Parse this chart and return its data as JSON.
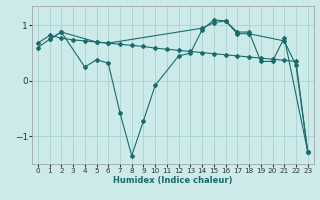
{
  "xlabel": "Humidex (Indice chaleur)",
  "bg_color": "#cdeaea",
  "grid_color": "#aed4d4",
  "line_color": "#1a6b6b",
  "xlim": [
    -0.5,
    23.5
  ],
  "ylim": [
    -1.5,
    1.35
  ],
  "yticks": [
    -1,
    0,
    1
  ],
  "xticks": [
    0,
    1,
    2,
    3,
    4,
    5,
    6,
    7,
    8,
    9,
    10,
    11,
    12,
    13,
    14,
    15,
    16,
    17,
    18,
    19,
    20,
    21,
    22,
    23
  ],
  "series": [
    {
      "x": [
        0,
        1,
        2,
        3,
        4,
        5,
        6,
        7,
        8,
        9,
        10,
        11,
        12,
        13,
        14,
        15,
        16,
        17,
        18,
        19,
        20,
        21,
        22,
        23
      ],
      "y": [
        0.68,
        0.82,
        0.77,
        0.74,
        0.72,
        0.7,
        0.68,
        0.66,
        0.64,
        0.62,
        0.59,
        0.57,
        0.55,
        0.53,
        0.51,
        0.49,
        0.47,
        0.45,
        0.43,
        0.41,
        0.39,
        0.37,
        0.35,
        -1.28
      ]
    },
    {
      "x": [
        0,
        1,
        2,
        4,
        5,
        6,
        7,
        8,
        9,
        10,
        12,
        13,
        14,
        15,
        16,
        17,
        18,
        21,
        22,
        23
      ],
      "y": [
        0.6,
        0.75,
        0.88,
        0.25,
        0.38,
        0.32,
        -0.58,
        -1.35,
        -0.72,
        -0.08,
        0.45,
        0.5,
        0.92,
        1.1,
        1.08,
        0.85,
        0.85,
        0.72,
        0.28,
        -1.28
      ]
    },
    {
      "x": [
        1,
        2,
        5,
        6,
        14,
        15,
        16,
        17,
        18,
        19,
        20,
        21,
        23
      ],
      "y": [
        0.75,
        0.88,
        0.7,
        0.68,
        0.95,
        1.05,
        1.08,
        0.88,
        0.88,
        0.35,
        0.35,
        0.78,
        -1.28
      ]
    }
  ]
}
